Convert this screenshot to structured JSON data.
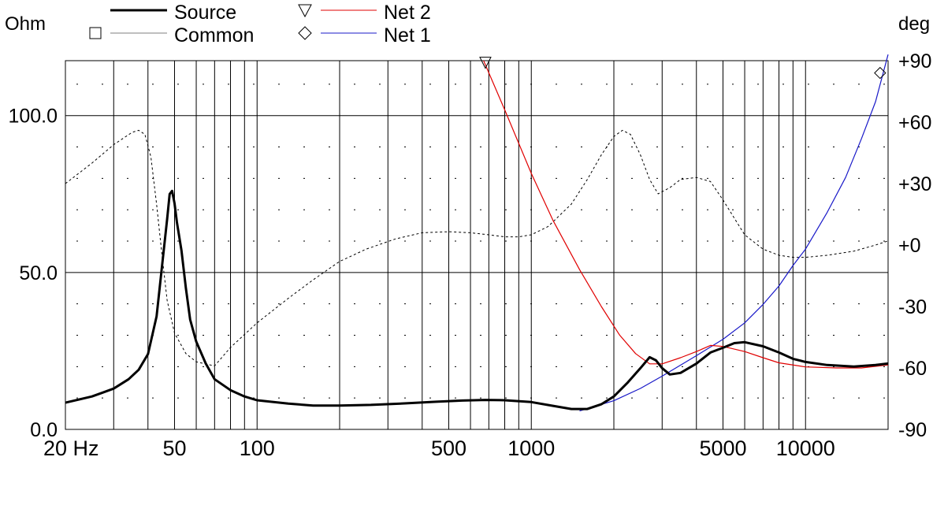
{
  "chart_data": {
    "type": "line",
    "left_axis_label": "Ohm",
    "right_axis_label": "deg",
    "x_scale": "log",
    "xlim": [
      20,
      20000
    ],
    "ylim": [
      0,
      117.5
    ],
    "y2lim": [
      -90,
      90
    ],
    "x_tick_labels": [
      {
        "value": 20,
        "label": "20 Hz"
      },
      {
        "value": 50,
        "label": "50"
      },
      {
        "value": 100,
        "label": "100"
      },
      {
        "value": 500,
        "label": "500"
      },
      {
        "value": 1000,
        "label": "1000"
      },
      {
        "value": 5000,
        "label": "5000"
      },
      {
        "value": 10000,
        "label": "10000"
      }
    ],
    "y_tick_labels": [
      {
        "value": 0,
        "label": "0.0"
      },
      {
        "value": 50,
        "label": "50.0"
      },
      {
        "value": 100,
        "label": "100.0"
      }
    ],
    "y2_tick_labels": [
      {
        "value": 90,
        "label": "+90"
      },
      {
        "value": 60,
        "label": "+60"
      },
      {
        "value": 30,
        "label": "+30"
      },
      {
        "value": 0,
        "label": "+0"
      },
      {
        "value": -30,
        "label": "-30"
      },
      {
        "value": -60,
        "label": "-60"
      },
      {
        "value": -90,
        "label": "-90"
      }
    ],
    "grid": true,
    "legend_position": "top",
    "series": [
      {
        "name": "Source",
        "axis": "left",
        "color": "#000000",
        "style": "solid-thick",
        "points": [
          [
            20,
            8.5
          ],
          [
            25,
            10.5
          ],
          [
            30,
            13
          ],
          [
            34,
            16
          ],
          [
            37,
            19
          ],
          [
            40,
            24
          ],
          [
            43,
            36
          ],
          [
            45,
            52
          ],
          [
            47,
            67
          ],
          [
            48,
            75
          ],
          [
            49,
            76
          ],
          [
            50,
            72
          ],
          [
            51,
            66
          ],
          [
            53,
            57
          ],
          [
            55,
            45
          ],
          [
            57,
            35
          ],
          [
            60,
            28
          ],
          [
            65,
            21
          ],
          [
            70,
            16
          ],
          [
            80,
            12.5
          ],
          [
            90,
            10.5
          ],
          [
            100,
            9.3
          ],
          [
            130,
            8.2
          ],
          [
            160,
            7.6
          ],
          [
            200,
            7.6
          ],
          [
            260,
            7.8
          ],
          [
            350,
            8.3
          ],
          [
            450,
            8.8
          ],
          [
            560,
            9.2
          ],
          [
            680,
            9.4
          ],
          [
            800,
            9.3
          ],
          [
            1000,
            8.7
          ],
          [
            1200,
            7.5
          ],
          [
            1400,
            6.5
          ],
          [
            1600,
            6.5
          ],
          [
            1800,
            8
          ],
          [
            2000,
            10.5
          ],
          [
            2250,
            15
          ],
          [
            2500,
            19.5
          ],
          [
            2700,
            23
          ],
          [
            2850,
            22
          ],
          [
            3000,
            19.5
          ],
          [
            3200,
            17.5
          ],
          [
            3500,
            18
          ],
          [
            4000,
            21
          ],
          [
            4500,
            24.5
          ],
          [
            5000,
            26
          ],
          [
            5500,
            27.5
          ],
          [
            6000,
            27.8
          ],
          [
            7000,
            26.5
          ],
          [
            8000,
            24.5
          ],
          [
            9000,
            22.5
          ],
          [
            10000,
            21.5
          ],
          [
            12000,
            20.5
          ],
          [
            15000,
            20
          ],
          [
            18000,
            20.5
          ],
          [
            20000,
            21
          ]
        ]
      },
      {
        "name": "Common",
        "axis": "right",
        "color": "#000000",
        "style": "dotted",
        "points": [
          [
            20,
            30
          ],
          [
            25,
            40
          ],
          [
            30,
            49
          ],
          [
            35,
            55
          ],
          [
            37,
            56
          ],
          [
            39,
            54
          ],
          [
            41,
            43
          ],
          [
            43,
            20
          ],
          [
            45,
            -5
          ],
          [
            47,
            -27
          ],
          [
            50,
            -43
          ],
          [
            55,
            -53
          ],
          [
            60,
            -57
          ],
          [
            70,
            -59
          ],
          [
            80,
            -50
          ],
          [
            100,
            -38
          ],
          [
            130,
            -26
          ],
          [
            160,
            -17
          ],
          [
            200,
            -8
          ],
          [
            250,
            -2
          ],
          [
            320,
            3
          ],
          [
            400,
            6
          ],
          [
            500,
            6.5
          ],
          [
            600,
            6
          ],
          [
            700,
            5
          ],
          [
            800,
            4
          ],
          [
            900,
            4
          ],
          [
            1000,
            5
          ],
          [
            1150,
            9
          ],
          [
            1400,
            20
          ],
          [
            1600,
            32
          ],
          [
            1800,
            44
          ],
          [
            2000,
            53
          ],
          [
            2150,
            56
          ],
          [
            2300,
            54
          ],
          [
            2500,
            44
          ],
          [
            2700,
            32
          ],
          [
            2900,
            25
          ],
          [
            3200,
            28
          ],
          [
            3500,
            32
          ],
          [
            4000,
            33
          ],
          [
            4500,
            31
          ],
          [
            5000,
            22
          ],
          [
            6000,
            5
          ],
          [
            7000,
            -2
          ],
          [
            8000,
            -5
          ],
          [
            9000,
            -6
          ],
          [
            10000,
            -6
          ],
          [
            12000,
            -5
          ],
          [
            15000,
            -3
          ],
          [
            18000,
            0
          ],
          [
            20000,
            2
          ]
        ]
      },
      {
        "name": "Net 2",
        "axis": "right",
        "color": "#e00000",
        "style": "solid",
        "points": [
          [
            670,
            90
          ],
          [
            800,
            66
          ],
          [
            1000,
            35
          ],
          [
            1200,
            12
          ],
          [
            1500,
            -12
          ],
          [
            1800,
            -30
          ],
          [
            2100,
            -44
          ],
          [
            2400,
            -53
          ],
          [
            2700,
            -58
          ],
          [
            3000,
            -58
          ],
          [
            3500,
            -55
          ],
          [
            4000,
            -52
          ],
          [
            4500,
            -49
          ],
          [
            5000,
            -49.5
          ],
          [
            6000,
            -52
          ],
          [
            7000,
            -55
          ],
          [
            8000,
            -57.5
          ],
          [
            10000,
            -59.5
          ],
          [
            13000,
            -60
          ],
          [
            16000,
            -60
          ],
          [
            20000,
            -58.5
          ]
        ]
      },
      {
        "name": "Net 1",
        "axis": "right",
        "color": "#1818c8",
        "style": "solid",
        "points": [
          [
            1500,
            -81
          ],
          [
            2000,
            -76
          ],
          [
            2500,
            -70
          ],
          [
            3000,
            -64
          ],
          [
            4000,
            -54
          ],
          [
            5000,
            -46
          ],
          [
            6000,
            -38
          ],
          [
            7000,
            -29
          ],
          [
            8000,
            -20
          ],
          [
            9000,
            -10
          ],
          [
            10000,
            -2
          ],
          [
            12000,
            16
          ],
          [
            14000,
            33
          ],
          [
            16000,
            52
          ],
          [
            18000,
            70
          ],
          [
            20000,
            93
          ]
        ]
      }
    ],
    "markers": [
      {
        "series": "Net 2",
        "symbol": "triangle-down",
        "x": 680,
        "y2": 89
      },
      {
        "series": "Net 1",
        "symbol": "diamond",
        "x": 18700,
        "y2": 84
      }
    ]
  }
}
